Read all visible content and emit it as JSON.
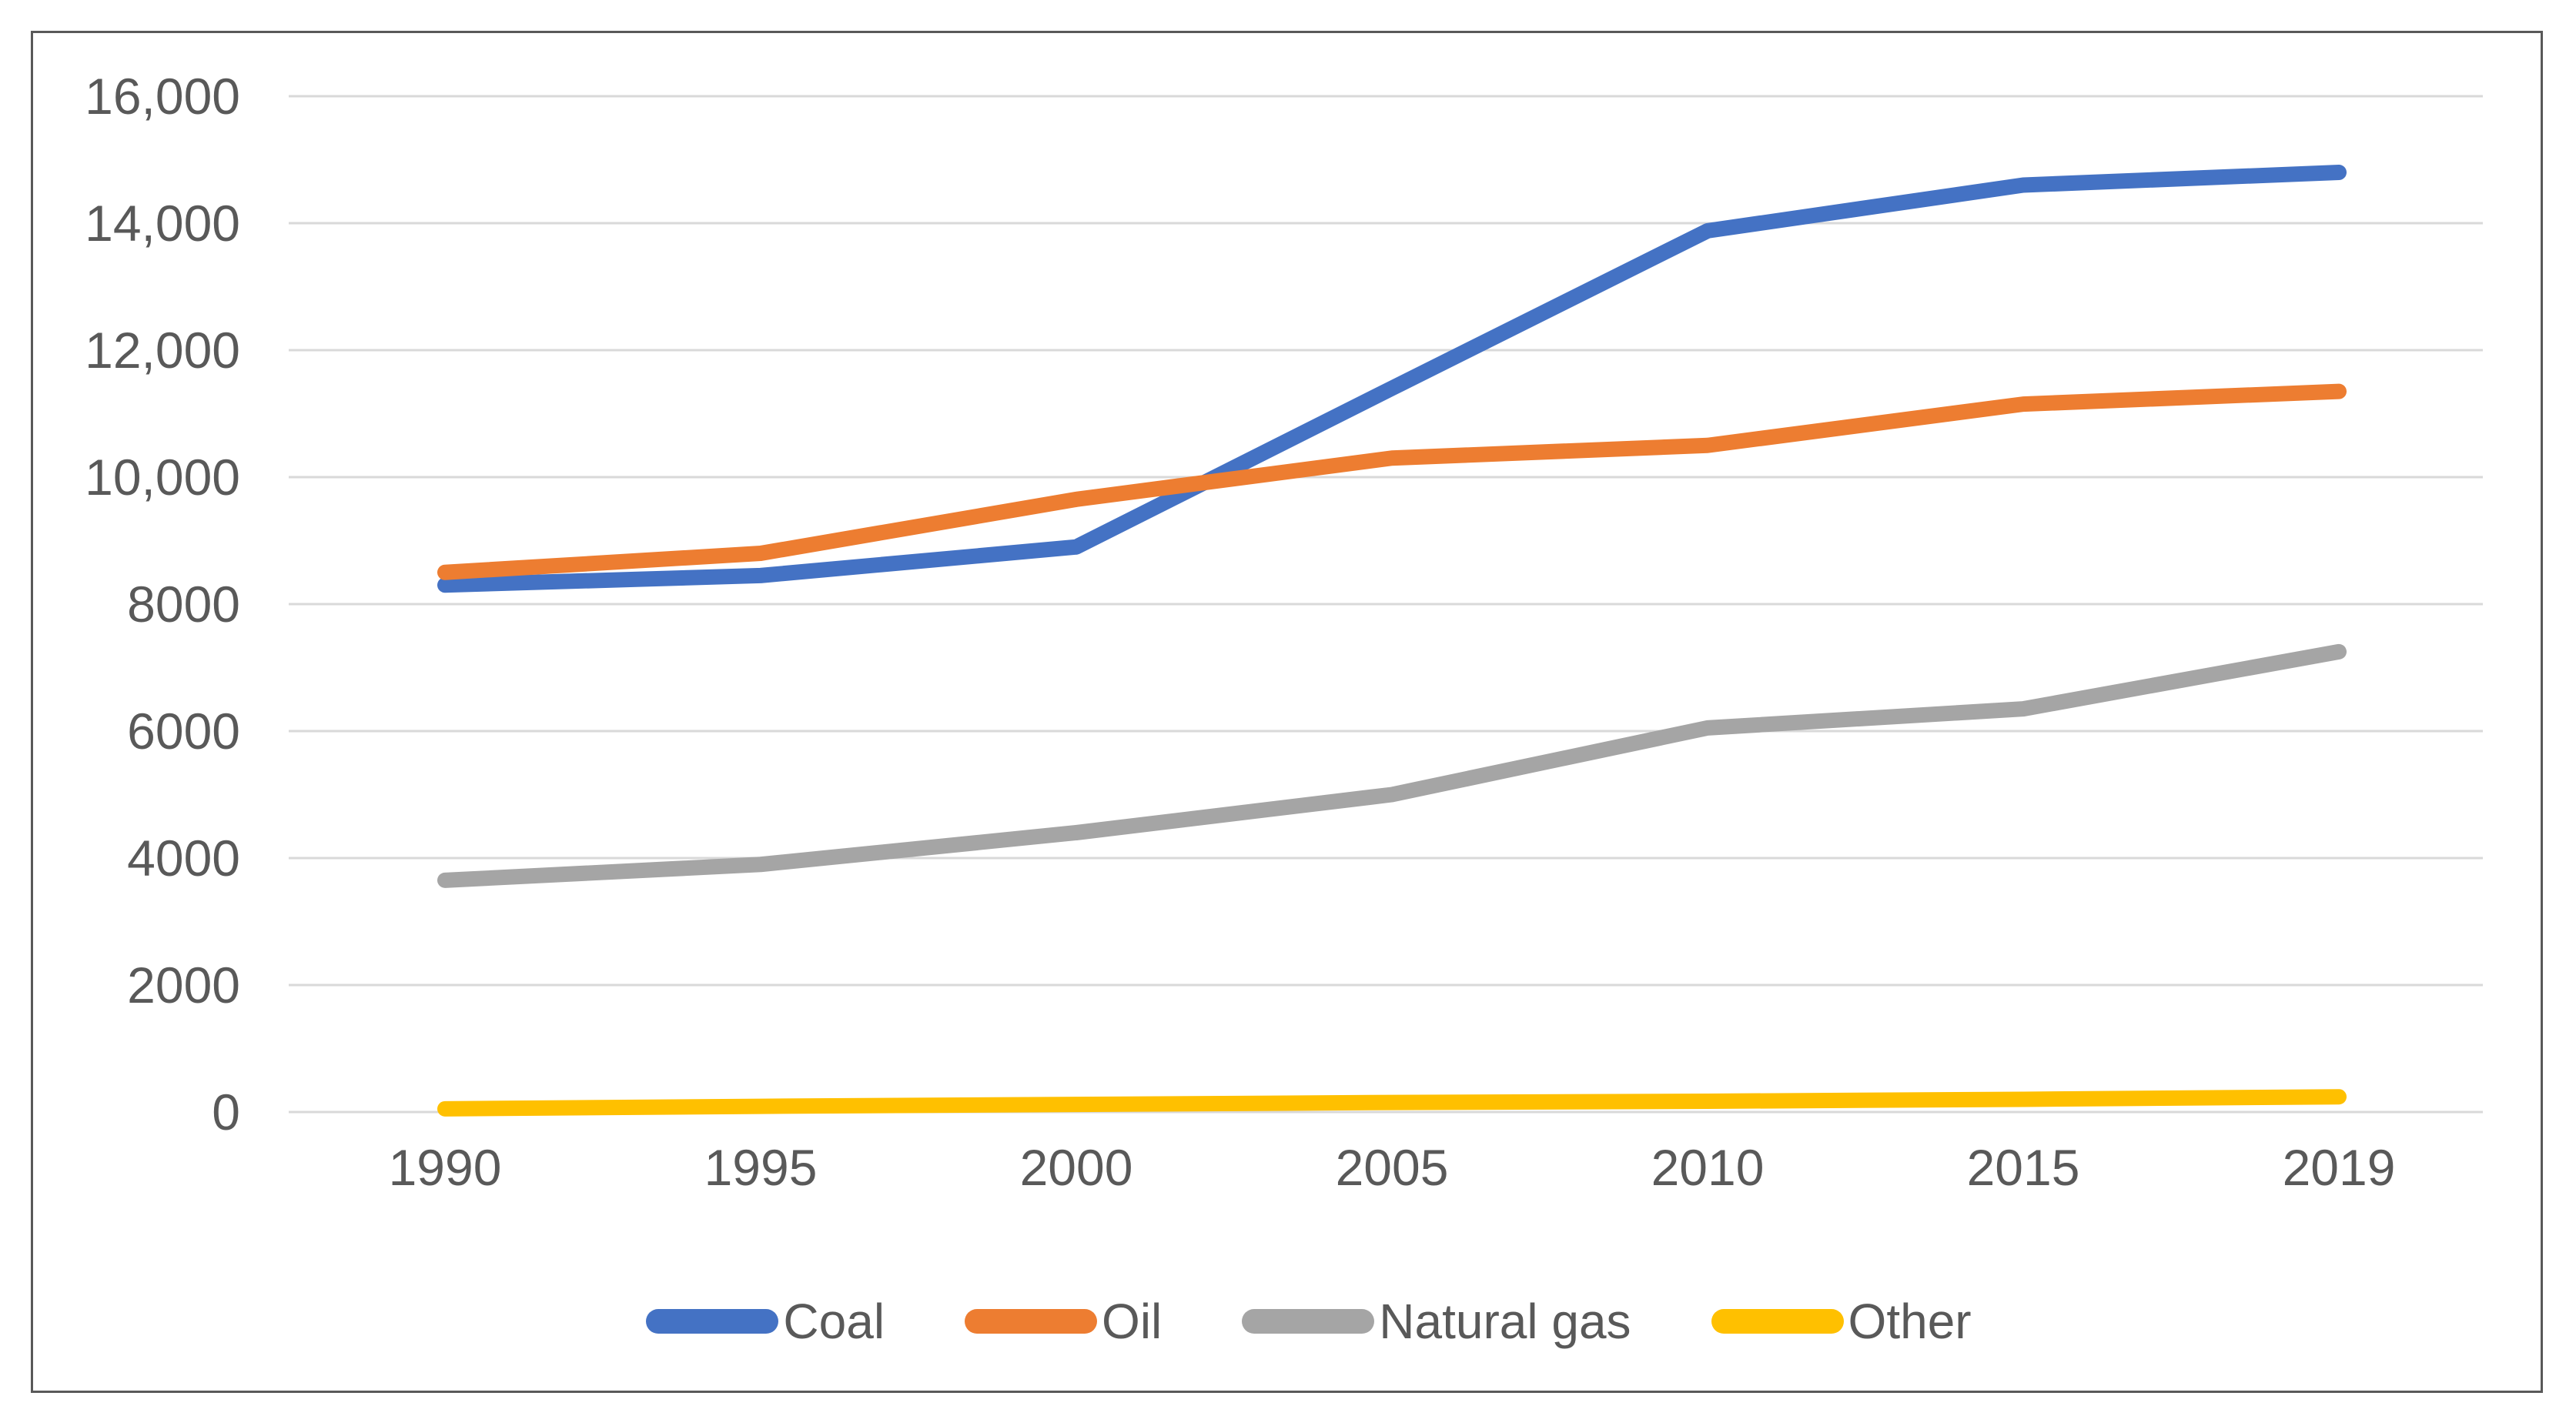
{
  "chart_data": {
    "type": "line",
    "title": "",
    "xlabel": "",
    "ylabel": "",
    "categories": [
      "1990",
      "1995",
      "2000",
      "2005",
      "2010",
      "2015",
      "2019"
    ],
    "series": [
      {
        "name": "Coal",
        "color": "#4472C4",
        "values": [
          8300,
          8450,
          8900,
          11400,
          13880,
          14600,
          14800
        ]
      },
      {
        "name": "Oil",
        "color": "#ED7D31",
        "values": [
          8500,
          8800,
          9650,
          10300,
          10500,
          11150,
          11350
        ]
      },
      {
        "name": "Natural gas",
        "color": "#A5A5A5",
        "values": [
          3650,
          3900,
          4400,
          5000,
          6050,
          6350,
          7250
        ]
      },
      {
        "name": "Other",
        "color": "#FFC000",
        "values": [
          50,
          90,
          120,
          150,
          170,
          200,
          240
        ]
      }
    ],
    "y_axis": {
      "min": 0,
      "max": 16000,
      "step": 2000,
      "tick_values": [
        16000,
        14000,
        12000,
        10000,
        8000,
        6000,
        4000,
        2000,
        0
      ],
      "tick_labels": [
        "16,000",
        "14,000",
        "12,000",
        "10,000",
        "8000",
        "6000",
        "4000",
        "2000",
        "0"
      ]
    },
    "x_axis": {
      "tick_labels": [
        "1990",
        "1995",
        "2000",
        "2005",
        "2010",
        "2015",
        "2019"
      ]
    },
    "grid": true,
    "legend_position": "bottom"
  },
  "style": {
    "grid_color": "#D9D9D9",
    "axis_text_color": "#595959",
    "border_color": "#595959",
    "background": "#FFFFFF",
    "line_width": 20
  }
}
